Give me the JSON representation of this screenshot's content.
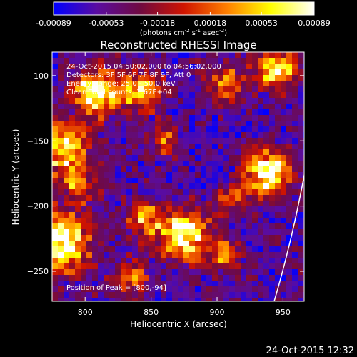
{
  "chart_data": {
    "type": "heatmap",
    "title": "Reconstructed RHESSI Image",
    "xlabel": "Heliocentric X (arcsec)",
    "ylabel": "Heliocentric Y (arcsec)",
    "xlim": [
      775,
      966
    ],
    "ylim": [
      -273,
      -82
    ],
    "x_ticks": [
      800,
      850,
      900,
      950
    ],
    "y_ticks": [
      -100,
      -150,
      -200,
      -250
    ],
    "colorbar": {
      "label_parts": [
        "(photons cm",
        "-2",
        " s",
        "-1",
        " asec",
        "-2",
        ")"
      ],
      "range": [
        -0.00089,
        0.00089
      ],
      "ticks": [
        "-0.00089",
        "-0.00053",
        "-0.00018",
        "0.00018",
        "0.00053",
        "0.00089"
      ],
      "ticks_values": [
        -0.00089,
        -0.00053,
        -0.00018,
        0.00018,
        0.00053,
        0.00089
      ],
      "colormap": [
        "#0000ff",
        "#5a0ca0",
        "#700a40",
        "#d01400",
        "#ff8000",
        "#ffff00",
        "#ffffff"
      ]
    },
    "annotations": [
      "24-Oct-2015 04:50:02.000 to 04:56:02.000",
      "Detectors: 3F 5F 6F 7F 8F 9F, Att 0",
      "Energy Range: 25.0 - 50.0 keV",
      "Clean     Total counts: 1.67E+04"
    ],
    "peak_label": "Position of Peak = [800,-94]",
    "peak_position": [
      800,
      -94
    ],
    "limb_color": "#ffffff",
    "bright_sources": [
      {
        "x": 808,
        "y": -112,
        "amp": 1.0,
        "sigma": 12
      },
      {
        "x": 783,
        "y": -155,
        "amp": 0.85,
        "sigma": 14
      },
      {
        "x": 780,
        "y": -228,
        "amp": 1.0,
        "sigma": 16
      },
      {
        "x": 795,
        "y": -183,
        "amp": 0.5,
        "sigma": 10
      },
      {
        "x": 842,
        "y": -112,
        "amp": 0.75,
        "sigma": 11
      },
      {
        "x": 905,
        "y": -108,
        "amp": 0.6,
        "sigma": 10
      },
      {
        "x": 945,
        "y": -95,
        "amp": 0.8,
        "sigma": 11
      },
      {
        "x": 938,
        "y": -175,
        "amp": 1.0,
        "sigma": 12
      },
      {
        "x": 875,
        "y": -222,
        "amp": 1.0,
        "sigma": 13
      },
      {
        "x": 845,
        "y": -210,
        "amp": 0.6,
        "sigma": 9
      },
      {
        "x": 835,
        "y": -255,
        "amp": 0.55,
        "sigma": 9
      },
      {
        "x": 905,
        "y": -238,
        "amp": 0.5,
        "sigma": 9
      },
      {
        "x": 912,
        "y": -195,
        "amp": 0.45,
        "sigma": 8
      },
      {
        "x": 860,
        "y": -150,
        "amp": 0.45,
        "sigma": 8
      }
    ]
  },
  "footer": {
    "timestamp": "24-Oct-2015 12:32"
  }
}
